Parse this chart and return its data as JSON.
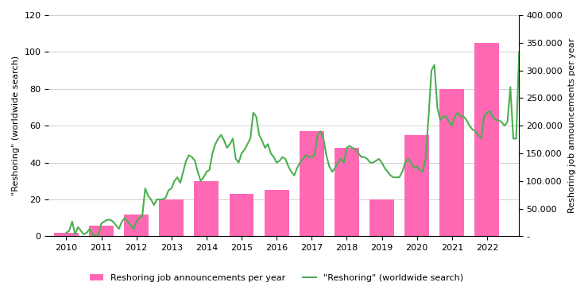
{
  "years": [
    2010,
    2011,
    2012,
    2013,
    2014,
    2015,
    2016,
    2017,
    2018,
    2019,
    2020,
    2021,
    2022
  ],
  "bar_values_left_scale": [
    2,
    6,
    12,
    20,
    30,
    23,
    25,
    57,
    48,
    20,
    55,
    80,
    105
  ],
  "bar_color": "#FF69B4",
  "line_x": [
    2010.0,
    2010.083,
    2010.167,
    2010.25,
    2010.333,
    2010.417,
    2010.5,
    2010.583,
    2010.667,
    2010.75,
    2010.833,
    2010.917,
    2011.0,
    2011.083,
    2011.167,
    2011.25,
    2011.333,
    2011.417,
    2011.5,
    2011.583,
    2011.667,
    2011.75,
    2011.833,
    2011.917,
    2012.0,
    2012.083,
    2012.167,
    2012.25,
    2012.333,
    2012.417,
    2012.5,
    2012.583,
    2012.667,
    2012.75,
    2012.833,
    2012.917,
    2013.0,
    2013.083,
    2013.167,
    2013.25,
    2013.333,
    2013.417,
    2013.5,
    2013.583,
    2013.667,
    2013.75,
    2013.833,
    2013.917,
    2014.0,
    2014.083,
    2014.167,
    2014.25,
    2014.333,
    2014.417,
    2014.5,
    2014.583,
    2014.667,
    2014.75,
    2014.833,
    2014.917,
    2015.0,
    2015.083,
    2015.167,
    2015.25,
    2015.333,
    2015.417,
    2015.5,
    2015.583,
    2015.667,
    2015.75,
    2015.833,
    2015.917,
    2016.0,
    2016.083,
    2016.167,
    2016.25,
    2016.333,
    2016.417,
    2016.5,
    2016.583,
    2016.667,
    2016.75,
    2016.833,
    2016.917,
    2017.0,
    2017.083,
    2017.167,
    2017.25,
    2017.333,
    2017.417,
    2017.5,
    2017.583,
    2017.667,
    2017.75,
    2017.833,
    2017.917,
    2018.0,
    2018.083,
    2018.167,
    2018.25,
    2018.333,
    2018.417,
    2018.5,
    2018.583,
    2018.667,
    2018.75,
    2018.833,
    2018.917,
    2019.0,
    2019.083,
    2019.167,
    2019.25,
    2019.333,
    2019.417,
    2019.5,
    2019.583,
    2019.667,
    2019.75,
    2019.833,
    2019.917,
    2020.0,
    2020.083,
    2020.167,
    2020.25,
    2020.333,
    2020.417,
    2020.5,
    2020.583,
    2020.667,
    2020.75,
    2020.833,
    2020.917,
    2021.0,
    2021.083,
    2021.167,
    2021.25,
    2021.333,
    2021.417,
    2021.5,
    2021.583,
    2021.667,
    2021.75,
    2021.833,
    2021.917,
    2022.0,
    2022.083,
    2022.167,
    2022.25,
    2022.333,
    2022.417,
    2022.5,
    2022.583,
    2022.667,
    2022.75,
    2022.833,
    2022.917
  ],
  "line_y": [
    2,
    3,
    8,
    1,
    5,
    3,
    1,
    2,
    4,
    1,
    0,
    1,
    7,
    8,
    9,
    9,
    8,
    6,
    4,
    8,
    10,
    8,
    6,
    4,
    8,
    10,
    11,
    26,
    22,
    20,
    17,
    20,
    20,
    20,
    21,
    25,
    26,
    30,
    32,
    29,
    35,
    41,
    44,
    43,
    41,
    35,
    30,
    32,
    35,
    36,
    45,
    50,
    53,
    55,
    52,
    48,
    50,
    53,
    42,
    40,
    45,
    47,
    50,
    53,
    67,
    65,
    55,
    52,
    48,
    50,
    45,
    43,
    40,
    41,
    43,
    42,
    38,
    35,
    33,
    37,
    40,
    42,
    44,
    43,
    43,
    44,
    55,
    57,
    53,
    44,
    38,
    35,
    37,
    40,
    42,
    40,
    48,
    49,
    48,
    47,
    45,
    43,
    43,
    42,
    40,
    40,
    41,
    42,
    40,
    37,
    35,
    33,
    32,
    32,
    32,
    35,
    40,
    42,
    40,
    37,
    38,
    36,
    35,
    42,
    65,
    90,
    93,
    70,
    63,
    65,
    65,
    62,
    60,
    65,
    67,
    65,
    65,
    63,
    60,
    58,
    57,
    55,
    53,
    65,
    67,
    68,
    65,
    63,
    63,
    62,
    60,
    62,
    81,
    53,
    53,
    100
  ],
  "line_color": "#4CAF50",
  "left_ylabel": "\"Reshoring\" (worldwide search)",
  "right_ylabel": "Reshoring job announcements per year",
  "left_ylim": [
    0,
    120
  ],
  "right_ylim": [
    0,
    400000
  ],
  "left_yticks": [
    0,
    20,
    40,
    60,
    80,
    100,
    120
  ],
  "right_yticks": [
    0,
    50000,
    100000,
    150000,
    200000,
    250000,
    300000,
    350000,
    400000
  ],
  "right_yticklabels": [
    "-",
    "50.000",
    "100.000",
    "150.000",
    "200.000",
    "250.000",
    "300.000",
    "350.000",
    "400.000"
  ],
  "xticks": [
    2010,
    2011,
    2012,
    2013,
    2014,
    2015,
    2016,
    2017,
    2018,
    2019,
    2020,
    2021,
    2022
  ],
  "legend_bar_label": "Reshoring job announcements per year",
  "legend_line_label": "\"Reshoring\" (worldwide search)",
  "background_color": "#FFFFFF",
  "grid_color": "#D0D0D0",
  "bar_width": 0.7
}
